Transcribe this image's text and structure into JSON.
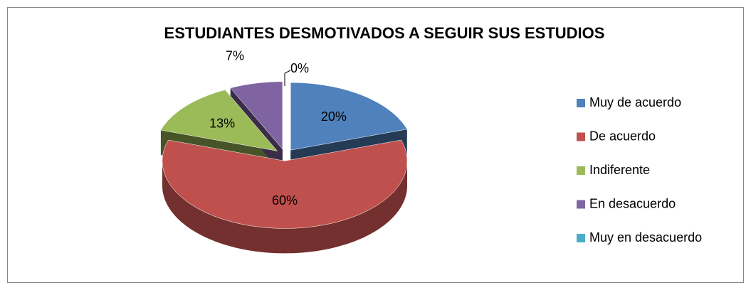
{
  "chart_data": {
    "type": "pie",
    "title": "ESTUDIANTES DESMOTIVADOS A SEGUIR SUS ESTUDIOS",
    "categories": [
      "Muy de acuerdo",
      "De acuerdo",
      "Indiferente",
      "En desacuerdo",
      "Muy en desacuerdo"
    ],
    "values": [
      20,
      60,
      13,
      7,
      0
    ],
    "value_labels": [
      "20%",
      "60%",
      "13%",
      "7%",
      "0%"
    ],
    "colors": [
      "#4f81bd",
      "#c0504d",
      "#9bbb59",
      "#8064a2",
      "#4bacc6"
    ],
    "legend": "right"
  }
}
